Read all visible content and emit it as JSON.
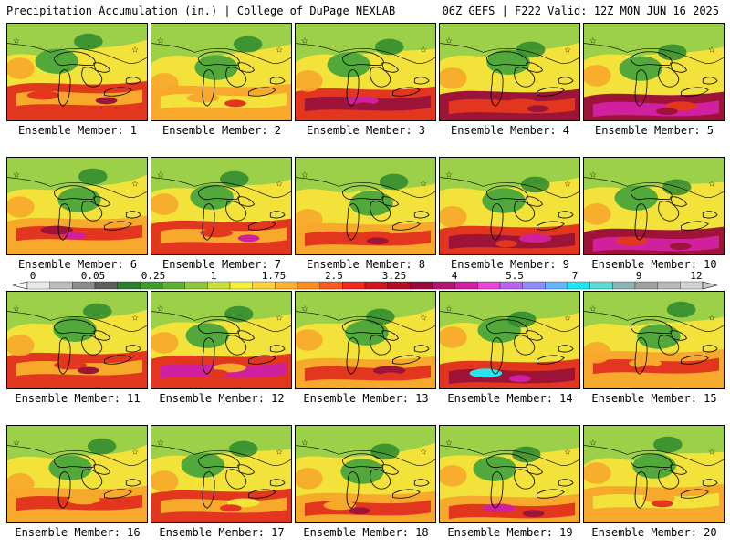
{
  "header": {
    "left_title": "Precipitation Accumulation (in.) | College of DuPage NEXLAB",
    "right_title": "06Z GEFS | F222 Valid: 12Z MON JUN 16 2025"
  },
  "panels": [
    {
      "label": "Ensemble Member: 1"
    },
    {
      "label": "Ensemble Member: 2"
    },
    {
      "label": "Ensemble Member: 3"
    },
    {
      "label": "Ensemble Member: 4"
    },
    {
      "label": "Ensemble Member: 5"
    },
    {
      "label": "Ensemble Member: 6"
    },
    {
      "label": "Ensemble Member: 7"
    },
    {
      "label": "Ensemble Member: 8"
    },
    {
      "label": "Ensemble Member: 9"
    },
    {
      "label": "Ensemble Member: 10"
    },
    {
      "label": "Ensemble Member: 11"
    },
    {
      "label": "Ensemble Member: 12"
    },
    {
      "label": "Ensemble Member: 13"
    },
    {
      "label": "Ensemble Member: 14"
    },
    {
      "label": "Ensemble Member: 15"
    },
    {
      "label": "Ensemble Member: 16"
    },
    {
      "label": "Ensemble Member: 17"
    },
    {
      "label": "Ensemble Member: 18"
    },
    {
      "label": "Ensemble Member: 19"
    },
    {
      "label": "Ensemble Member: 20"
    }
  ],
  "colorbar": {
    "tick_labels": [
      "0",
      "0.05",
      "0.25",
      "1",
      "1.75",
      "2.5",
      "3.25",
      "4",
      "5.5",
      "7",
      "9",
      "12"
    ],
    "colors": [
      "#e8e8e8",
      "#bdbdbd",
      "#8c8c8c",
      "#5e5e5e",
      "#2e7d32",
      "#3f9b2f",
      "#5bb12f",
      "#8fc93a",
      "#c8e03a",
      "#f5f03a",
      "#ffd23a",
      "#ffb02e",
      "#ff8c1e",
      "#ff5a1e",
      "#f0281e",
      "#d2141e",
      "#b40a28",
      "#960a3c",
      "#b4146e",
      "#d21ea0",
      "#e646d2",
      "#b464f0",
      "#8c8cff",
      "#64b4ff",
      "#1ee6f0",
      "#5adcd2",
      "#8cb4b4",
      "#a0a0a0",
      "#b9b9b9",
      "#d2d2d2"
    ]
  },
  "palette": {
    "green_dark": "#2f8a2f",
    "green": "#52a83a",
    "green_light": "#9bd048",
    "yellow": "#f2e23a",
    "orange": "#f7a92c",
    "red": "#e2361f",
    "maroon": "#9e1438",
    "magenta": "#d0209e",
    "cyan": "#28e6f0",
    "coast": "#000000"
  }
}
